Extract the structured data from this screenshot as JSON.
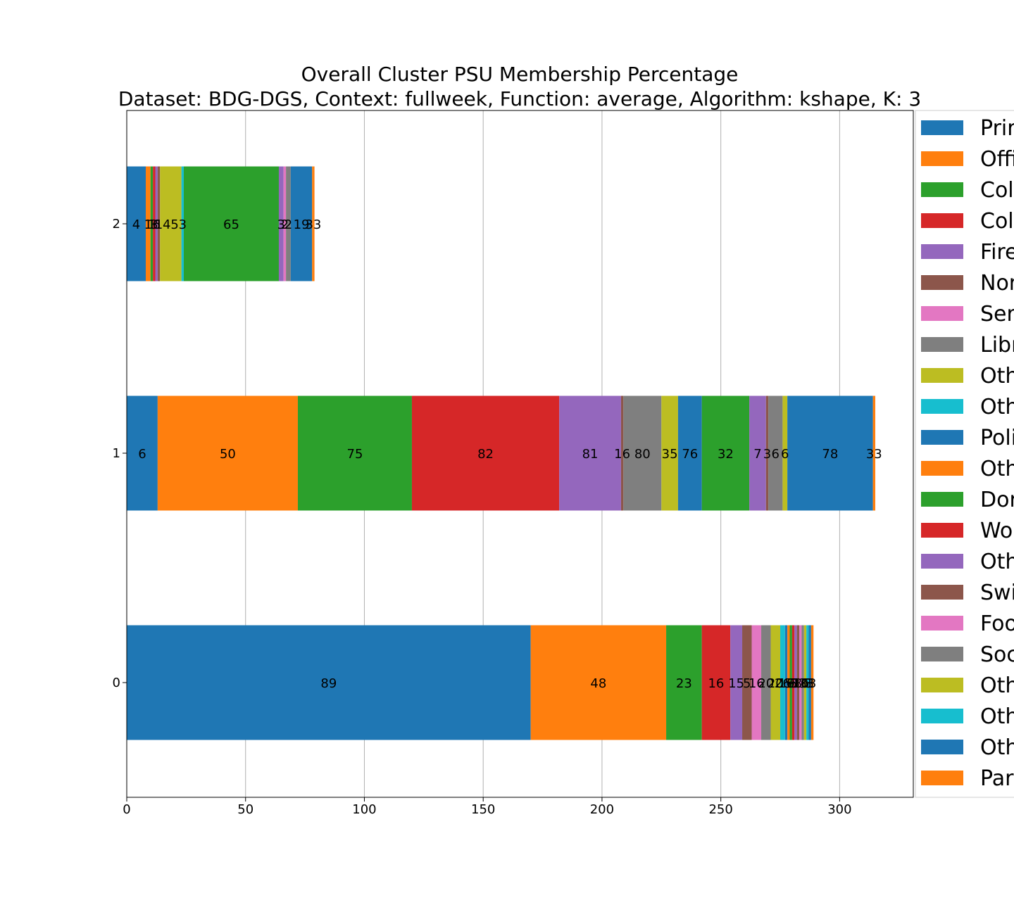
{
  "chart_data": {
    "type": "bar",
    "orientation": "horizontal",
    "stacked": true,
    "title": "Overall Cluster  PSU Membership Percentage",
    "subtitle": "Dataset: BDG-DGS, Context: fullweek, Function: average, Algorithm: kshape, K: 3",
    "xlabel": "",
    "ylabel": "",
    "categories": [
      "0",
      "1",
      "2"
    ],
    "xlim": [
      0,
      331
    ],
    "xticks": [
      0,
      50,
      100,
      150,
      200,
      250,
      300
    ],
    "grid": true,
    "legend_position": "right",
    "legend_labels_visible": [
      "Prir",
      "Offi",
      "Col",
      "Col",
      "Fire",
      "Nor",
      "Ser",
      "Libr",
      "Oth",
      "Oth",
      "Poli",
      "Oth",
      "Dor",
      "Wo",
      "Oth",
      "Swi",
      "Foo",
      "Soc",
      "Oth",
      "Oth",
      "Oth",
      "Par"
    ],
    "series_colors": [
      "#1f77b4",
      "#ff7f0e",
      "#2ca02c",
      "#d62728",
      "#9467bd",
      "#8c564b",
      "#e377c2",
      "#7f7f7f",
      "#bcbd22",
      "#17becf",
      "#1f77b4",
      "#ff7f0e",
      "#2ca02c",
      "#d62728",
      "#9467bd",
      "#8c564b",
      "#e377c2",
      "#7f7f7f",
      "#bcbd22",
      "#17becf",
      "#1f77b4",
      "#ff7f0e"
    ],
    "rows": [
      {
        "category": "0",
        "values": [
          170,
          57,
          15,
          12,
          5,
          4,
          4,
          4,
          4,
          2,
          1,
          1,
          1,
          1,
          1,
          1,
          1,
          1,
          1,
          1,
          1,
          1
        ],
        "labels": [
          "89",
          "48",
          "23",
          "16",
          "15",
          "5",
          "16",
          "20",
          "20",
          "26",
          "16",
          "5",
          "9",
          "5",
          "3",
          "8",
          "10",
          "3",
          "6",
          "8",
          "3",
          "3"
        ]
      },
      {
        "category": "1",
        "values": [
          13,
          59,
          48,
          62,
          26,
          1,
          0,
          16,
          7,
          0,
          10,
          0,
          20,
          0,
          7,
          1,
          0,
          6,
          2,
          0,
          36,
          1
        ],
        "labels": [
          "6",
          "50",
          "75",
          "82",
          "81",
          "16",
          "",
          "80",
          "35",
          "",
          "76",
          "",
          "32",
          "",
          "7",
          "3",
          "",
          "6",
          "6",
          "",
          "78",
          "33"
        ]
      },
      {
        "category": "2",
        "values": [
          8,
          2,
          1,
          1,
          1,
          1,
          0,
          0,
          9,
          1,
          0,
          0,
          40,
          0,
          2,
          0,
          1,
          2,
          0,
          0,
          9,
          1
        ],
        "labels": [
          "4",
          "1",
          "1",
          "3",
          "6",
          "1",
          "",
          "",
          "45",
          "3",
          "",
          "",
          "65",
          "",
          "3",
          "",
          "2",
          "2",
          "",
          "",
          "19",
          "33"
        ]
      }
    ]
  }
}
